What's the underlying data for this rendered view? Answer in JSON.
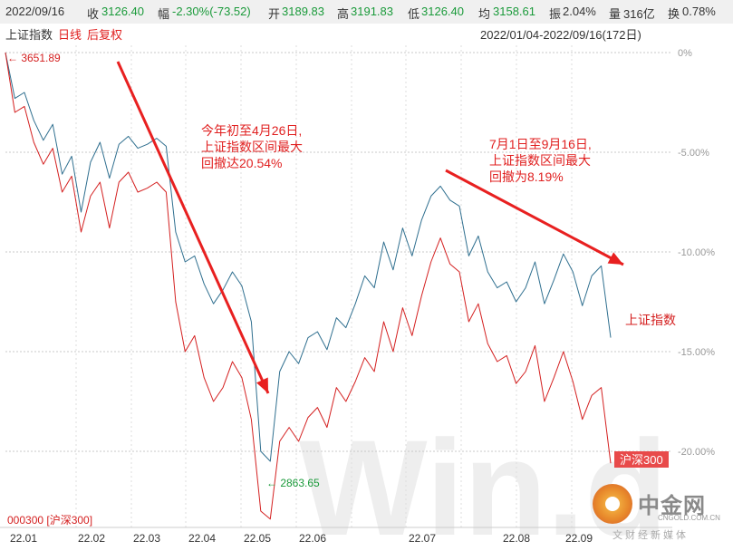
{
  "header": {
    "date": "2022/09/16",
    "close_label": "收",
    "close_value": "3126.40",
    "change_label": "幅",
    "change_value": "-2.30%(-73.52)",
    "open_label": "开",
    "open_value": "3189.83",
    "high_label": "高",
    "high_value": "3191.83",
    "low_label": "低",
    "low_value": "3126.40",
    "avg_label": "均",
    "avg_value": "3158.61",
    "amp_label": "振",
    "amp_value": "2.04%",
    "vol_label": "量",
    "vol_value": "316亿",
    "turn_label": "换",
    "turn_value": "0.78%"
  },
  "subheader": {
    "index_name": "上证指数",
    "period": "日线",
    "adjust": "后复权",
    "range": "2022/01/04-2022/09/16(172日)"
  },
  "annotations": {
    "first": "今年初至4月26日,\n上证指数区间最大\n回撤达20.54%",
    "second": "7月1日至9月16日,\n上证指数区间最大\n回撤为8.19%",
    "peak_label": "3651.89",
    "trough_label": "2863.65",
    "series_label_sh": "上证指数",
    "series_label_hs": "沪深300",
    "bottom_left": "000300 [沪深300]"
  },
  "watermark": {
    "brand": "中金网",
    "site": "CNGOLD.COM.CN",
    "slogan": "文财经新媒体",
    "big": "Win.d"
  },
  "colors": {
    "sh_line": "#2f6f8f",
    "hs_line": "#d42020",
    "arrow": "#e82020",
    "grid": "#c8c8c8",
    "axis_text": "#999999"
  },
  "chart_data": {
    "type": "line",
    "x_axis": [
      "22.01",
      "22.02",
      "22.03",
      "22.04",
      "22.05",
      "22.06",
      "22.07",
      "22.08",
      "22.09"
    ],
    "y_axis": [
      "0%",
      "-5.00%",
      "-10.00%",
      "-15.00%",
      "-20.00%"
    ],
    "ylim": [
      -23.5,
      0.5
    ],
    "grid": true,
    "series": [
      {
        "name": "上证指数",
        "values": [
          0,
          -2.3,
          -2.0,
          -3.4,
          -4.4,
          -3.6,
          -6.1,
          -5.2,
          -8.0,
          -5.5,
          -4.5,
          -6.3,
          -4.6,
          -4.2,
          -4.8,
          -4.6,
          -4.3,
          -4.7,
          -9.0,
          -10.5,
          -10.2,
          -11.6,
          -12.6,
          -11.9,
          -11.0,
          -11.7,
          -13.5,
          -20.0,
          -20.5,
          -16.0,
          -15.0,
          -15.6,
          -14.3,
          -14.0,
          -14.9,
          -13.3,
          -13.8,
          -12.6,
          -11.2,
          -11.8,
          -9.5,
          -10.9,
          -8.8,
          -10.2,
          -8.4,
          -7.2,
          -6.7,
          -7.4,
          -7.7,
          -10.2,
          -9.2,
          -11.0,
          -11.8,
          -11.5,
          -12.5,
          -11.8,
          -10.5,
          -12.6,
          -11.4,
          -10.1,
          -11.0,
          -12.7,
          -11.2,
          -10.7,
          -14.3
        ]
      },
      {
        "name": "沪深300",
        "values": [
          0,
          -3.0,
          -2.7,
          -4.5,
          -5.6,
          -4.8,
          -7.0,
          -6.2,
          -9.0,
          -7.2,
          -6.5,
          -8.8,
          -6.5,
          -6.0,
          -7.0,
          -6.8,
          -6.5,
          -7.0,
          -12.5,
          -15.0,
          -14.2,
          -16.3,
          -17.5,
          -16.8,
          -15.5,
          -16.3,
          -18.4,
          -23.0,
          -23.4,
          -19.5,
          -18.8,
          -19.5,
          -18.3,
          -17.8,
          -18.8,
          -16.8,
          -17.5,
          -16.5,
          -15.3,
          -16.0,
          -13.5,
          -15.0,
          -12.8,
          -14.2,
          -12.2,
          -10.5,
          -9.3,
          -10.6,
          -11.0,
          -13.5,
          -12.6,
          -14.6,
          -15.5,
          -15.2,
          -16.6,
          -16.0,
          -14.7,
          -17.5,
          -16.3,
          -15.0,
          -16.5,
          -18.4,
          -17.2,
          -16.8,
          -20.6
        ]
      }
    ]
  }
}
